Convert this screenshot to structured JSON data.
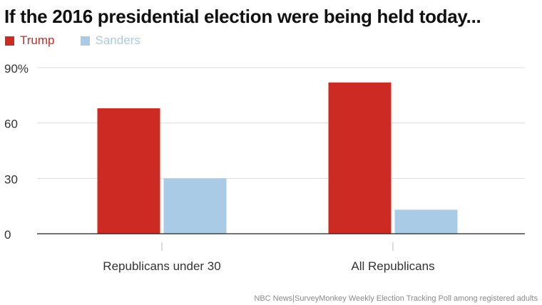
{
  "colors": {
    "trump": "#cc2a22",
    "sanders": "#a9cbe6",
    "grid": "#dddddd",
    "axis": "#222222",
    "text": "#333333"
  },
  "chart_data": {
    "type": "bar",
    "title": "If the 2016 presidential election were being held today...",
    "categories": [
      "Republicans under 30",
      "All Republicans"
    ],
    "series": [
      {
        "name": "Trump",
        "values": [
          68,
          82
        ]
      },
      {
        "name": "Sanders",
        "values": [
          30,
          13
        ]
      }
    ],
    "yticks": [
      "0",
      "30",
      "60",
      "90%"
    ],
    "ytick_values": [
      0,
      30,
      60,
      90
    ],
    "ylim": [
      0,
      90
    ],
    "grid": true,
    "legend_position": "top-left",
    "source": "NBC News|SurveyMonkey Weekly Election Tracking Poll among registered adults"
  }
}
